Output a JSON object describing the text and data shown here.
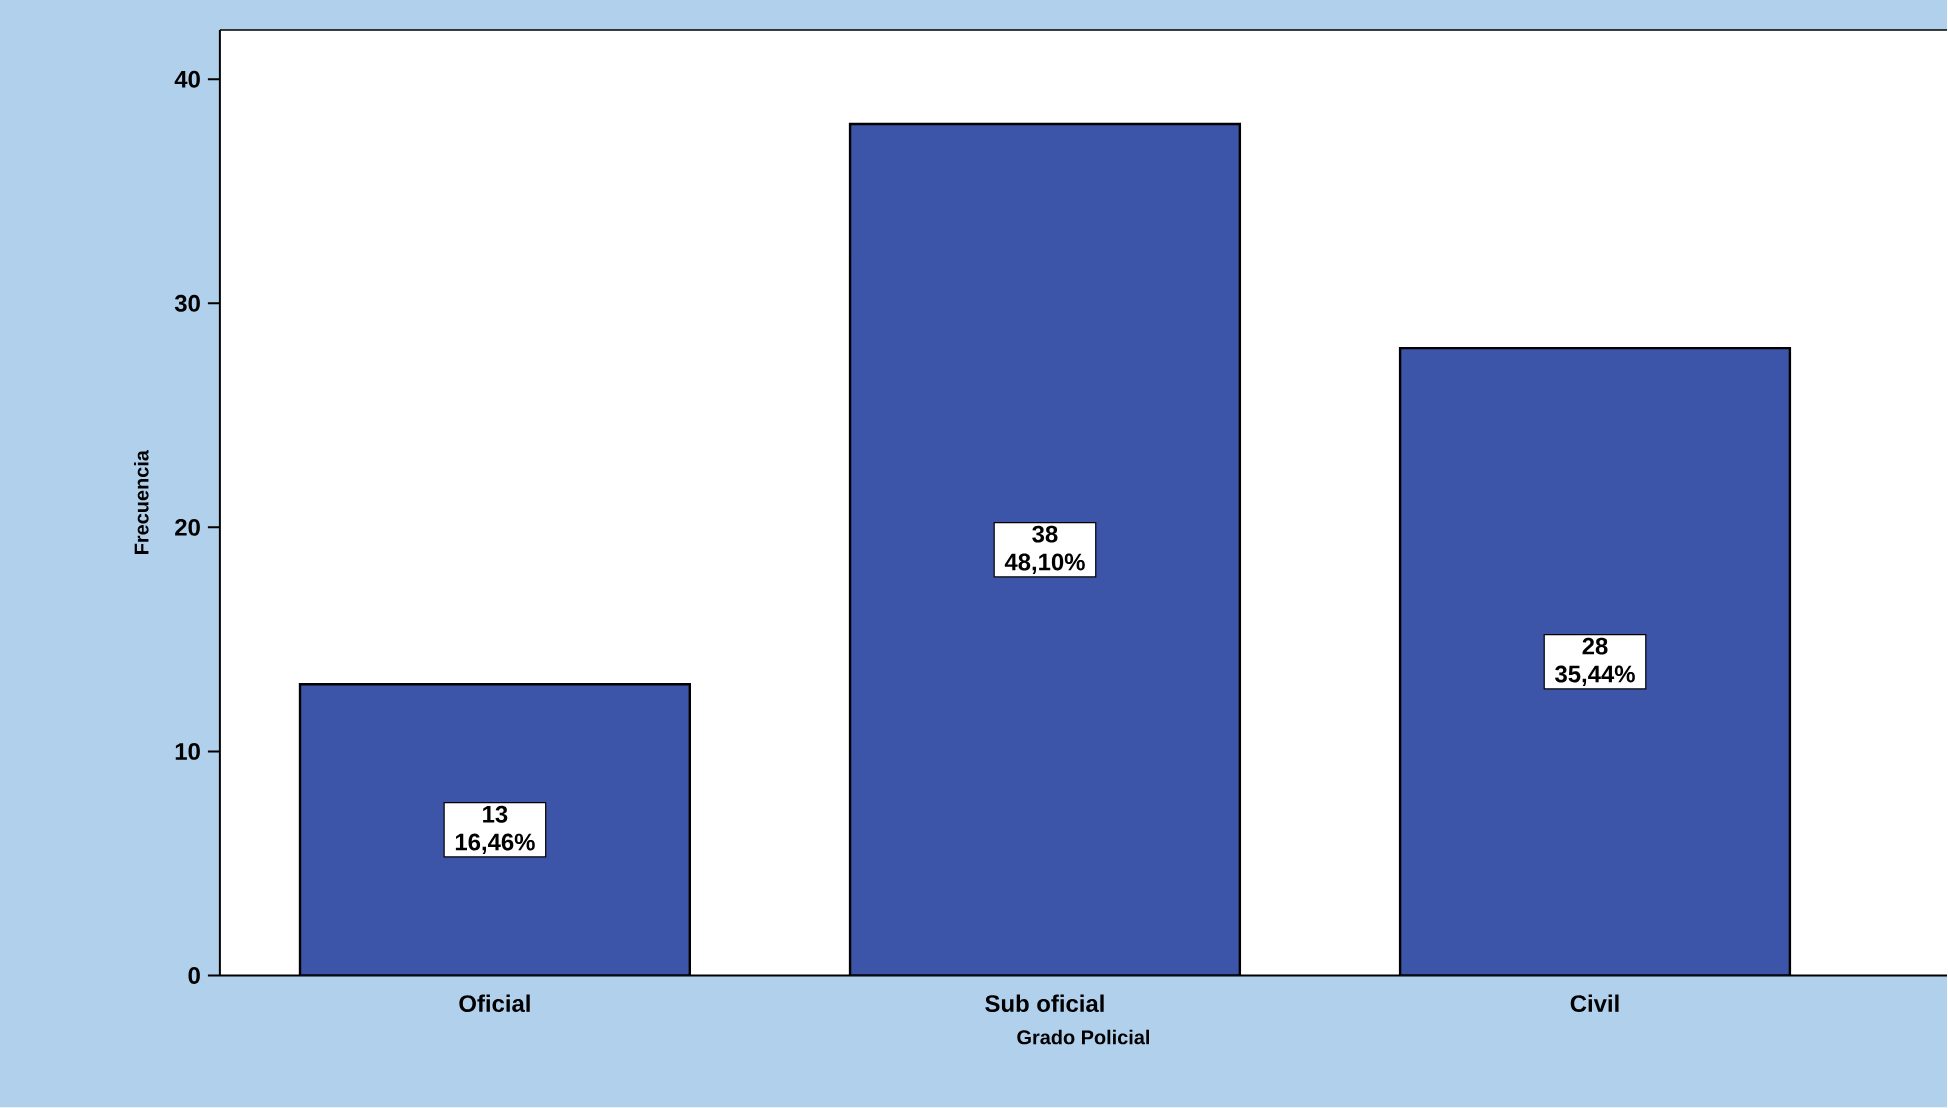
{
  "chart_data": {
    "type": "bar",
    "xlabel": "Grado Policial",
    "ylabel": "Frecuencia",
    "categories": [
      "Oficial",
      "Sub oficial",
      "Civil"
    ],
    "values": [
      13,
      38,
      28
    ],
    "color": "#3d55a8",
    "value_labels": [
      "13 16,46%",
      "38 48,10%",
      "28 35,44%"
    ],
    "ylim": [
      0,
      42.2
    ],
    "yticks": [
      0,
      10,
      20,
      30,
      40
    ],
    "grid": false
  }
}
